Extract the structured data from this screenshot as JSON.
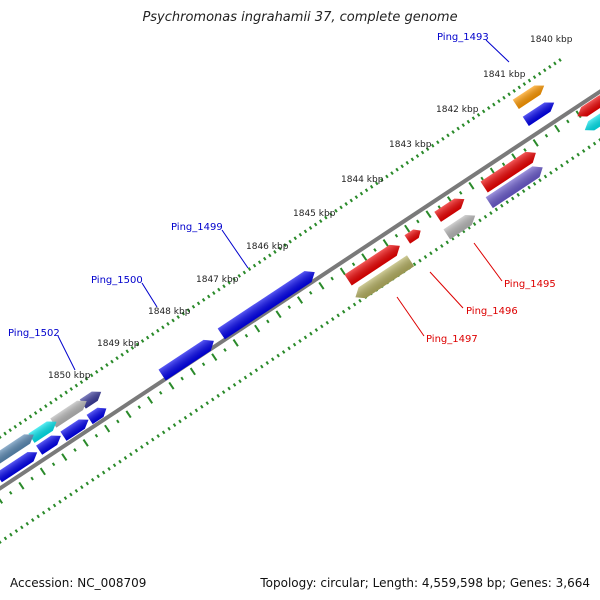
{
  "title": "Psychromonas ingrahamii 37, complete genome",
  "footer": {
    "accession": "Accession: NC_008709",
    "summary": "Topology: circular; Length: 4,559,598 bp; Genes: 3,664"
  },
  "scale_labels": [
    "1840 kbp",
    "1841 kbp",
    "1842 kbp",
    "1843 kbp",
    "1844 kbp",
    "1845 kbp",
    "1846 kbp",
    "1847 kbp",
    "1848 kbp",
    "1849 kbp",
    "1850 kbp"
  ],
  "gene_labels": {
    "blue": [
      "Ping_1493",
      "Ping_1499",
      "Ping_1500",
      "Ping_1502"
    ],
    "red": [
      "Ping_1495",
      "Ping_1496",
      "Ping_1497"
    ]
  },
  "colors": {
    "label_blue": "#0000cc",
    "label_red": "#dd0000",
    "tick_green": "#2a8a2a",
    "axis_grey": "#7a7a7a",
    "gene_blue": "#0000ee",
    "gene_red": "#ee0000",
    "gene_orange": "#ff9900",
    "gene_cyan": "#00e5ee",
    "gene_grey": "#b8b8b8",
    "gene_purple": "#6a5acd",
    "gene_olive": "#b5b060",
    "gene_steel": "#5a8ab5",
    "gene_navy": "#3a3a9a"
  }
}
